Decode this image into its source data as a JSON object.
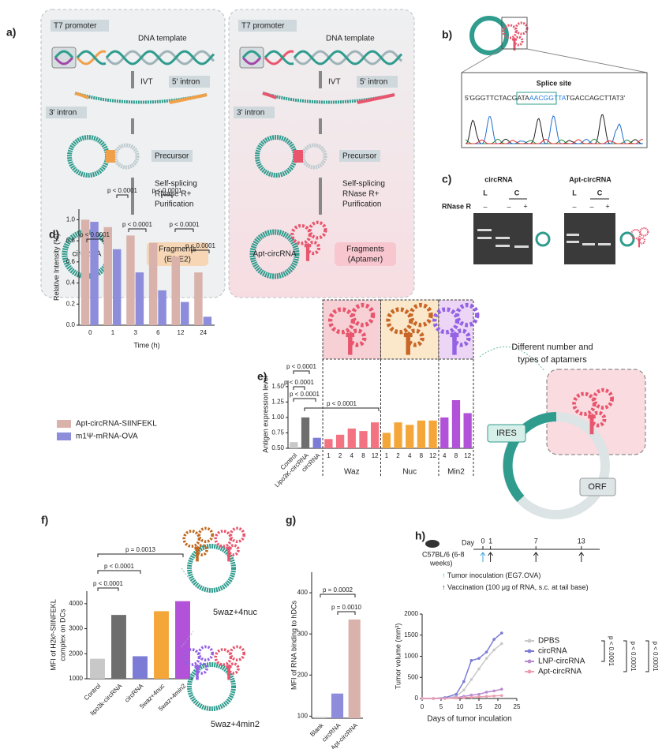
{
  "panel_labels": [
    "a)",
    "b)",
    "c)",
    "d)",
    "e)",
    "f)",
    "g)",
    "h)"
  ],
  "scheme_a": {
    "left": {
      "promoter": "T7 promoter",
      "template": "DNA template",
      "ivt": "IVT",
      "intron5": "5' intron",
      "intron3": "3' intron",
      "precursor": "Precursor",
      "steps": [
        "Self-splicing",
        "RNase R+",
        "Purification"
      ],
      "product": "circRNA",
      "fragments": [
        "Fragments",
        "(E1,E2)"
      ]
    },
    "right": {
      "promoter": "T7 promoter",
      "template": "DNA template",
      "ivt": "IVT",
      "intron5": "5' intron",
      "intron3": "3' intron",
      "precursor": "Precursor",
      "steps": [
        "Self-splicing",
        "RNase R+",
        "Purification"
      ],
      "product": "Apt-circRNA",
      "fragments": [
        "Fragments",
        "(Aptamer)"
      ]
    }
  },
  "panel_b": {
    "title": "Splice site",
    "sequence_prefix": "5'GGGTTCTACGATA",
    "sequence_site": "AACGGTTA",
    "sequence_suffix": "TGACCAGCTTAT3'"
  },
  "panel_c": {
    "rnase_label": "RNase R",
    "gels": [
      {
        "title": "circRNA",
        "lanes": [
          "L",
          "C"
        ],
        "treatment": [
          "–",
          "–",
          "+"
        ]
      },
      {
        "title": "Apt-circRNA",
        "lanes": [
          "L",
          "C"
        ],
        "treatment": [
          "–",
          "–",
          "+"
        ]
      }
    ]
  },
  "scheme_e": {
    "title_lines": [
      "Different number and",
      "types of aptamers"
    ],
    "ires": "IRES",
    "orf": "ORF"
  },
  "scheme_f": {
    "labels": [
      "5waz+4nuc",
      "5waz+4min2"
    ]
  },
  "timeline_h": {
    "day_label": "Day",
    "days": [
      0,
      1,
      7,
      13
    ],
    "mouse": [
      "C57BL/6 (6-8",
      "weeks)"
    ],
    "inoculation": "Tumor inoculation (EG7.OVA)",
    "vaccination": "Vaccination (100 μg of RNA, s.c. at tail base)"
  },
  "chart_data": [
    {
      "type": "bar",
      "ylabel": [
        "Relative Intensity (%)"
      ],
      "xlabel": "Time (h)",
      "categories": [
        "0",
        "1",
        "3",
        "6",
        "12",
        "24"
      ],
      "series": [
        {
          "name": "Apt-circRNA-SIINFEKL",
          "color": "#d9b3ab",
          "values": [
            1.0,
            0.93,
            0.85,
            0.78,
            0.65,
            0.5
          ]
        },
        {
          "name": "m1Ψ-mRNA-OVA",
          "color": "#8d8ddb",
          "values": [
            0.98,
            0.72,
            0.5,
            0.33,
            0.22,
            0.08
          ]
        }
      ],
      "ylim": [
        0,
        1.1
      ],
      "yticks": [
        {
          "value": 0,
          "label": "0.0"
        },
        0.2,
        0.4,
        0.6,
        0.8,
        {
          "value": 1,
          "label": "1.0"
        }
      ],
      "annotations": [
        "p < 0.0001",
        "p < 0.0001",
        "p < 0.0001",
        "p < 0.0001",
        "p < 0.0001",
        "p < 0.0001"
      ]
    },
    {
      "type": "bar",
      "ylabel": [
        "Antigen expression level"
      ],
      "categories": [
        "Control",
        "Lipo3K-circRNA",
        "circRNA",
        "1",
        "2",
        "4",
        "8",
        "12",
        "1",
        "2",
        "4",
        "8",
        "12",
        "4",
        "8",
        "12"
      ],
      "values": [
        0.6,
        1.0,
        0.67,
        0.65,
        0.72,
        0.82,
        0.78,
        0.92,
        0.75,
        0.92,
        0.88,
        0.95,
        0.95,
        1.0,
        1.28,
        1.07
      ],
      "colors": [
        "#c8c8c8",
        "#6e6e6e",
        "#7c7cd6",
        "#f47382",
        "#f47382",
        "#f47382",
        "#f47382",
        "#f47382",
        "#f5a638",
        "#f5a638",
        "#f5a638",
        "#f5a638",
        "#f5a638",
        "#b152d8",
        "#b152d8",
        "#b152d8"
      ],
      "group_labels": [
        "Waz",
        "Nuc",
        "Min2"
      ],
      "ylim": [
        0.5,
        1.6
      ],
      "yticks": [
        {
          "value": 0.5,
          "label": "0.50"
        },
        0.75,
        {
          "value": 1,
          "label": "1.00"
        },
        1.25,
        {
          "value": 1.5,
          "label": "1.50"
        }
      ],
      "annotations": [
        "p < 0.0001",
        "p < 0.0001",
        "p < 0.0001",
        "p < 0.0001"
      ]
    },
    {
      "type": "bar",
      "ylabel": [
        "MFI of H2kᵇ-SIINFEKL",
        "complex on DCs"
      ],
      "categories": [
        "Control",
        "lipo3k-circRNA",
        "circRNA",
        "5waz+4nuc",
        "5waz+4min2"
      ],
      "values": [
        1800,
        3550,
        1900,
        3700,
        4100
      ],
      "colors": [
        "#c8c8c8",
        "#6e6e6e",
        "#7c7cd6",
        "#f5a638",
        "#b152d8"
      ],
      "ylim": [
        1000,
        4500
      ],
      "yticks": [
        1000,
        2000,
        3000,
        4000
      ],
      "annotations": [
        "p < 0.0001",
        "p < 0.0001",
        "p = 0.0013"
      ]
    },
    {
      "type": "bar",
      "ylabel": [
        "MFI of RNA binding to hDCs"
      ],
      "categories": [
        "Blank",
        "circRNA",
        "Apt-circRNA"
      ],
      "values": [
        98,
        155,
        335
      ],
      "colors": [
        "#c8c8c8",
        "#8d8ddb",
        "#d9b3ab"
      ],
      "ylim": [
        95,
        450
      ],
      "yticks": [
        100,
        200,
        300,
        400
      ],
      "annotations": [
        "p = 0.0002",
        "p = 0.0010"
      ]
    },
    {
      "type": "line",
      "ylabel": [
        "Tumor volume (mm³)"
      ],
      "xlabel": "Days of tumor inculation",
      "x": [
        0,
        3,
        6,
        9,
        11,
        13,
        15,
        17,
        19,
        21
      ],
      "series": [
        {
          "name": "DPBS",
          "color": "#c9c9c9",
          "values": [
            0,
            0,
            10,
            50,
            200,
            450,
            700,
            950,
            1150,
            1300
          ]
        },
        {
          "name": "circRNA",
          "color": "#7c7cd6",
          "values": [
            0,
            0,
            20,
            100,
            400,
            900,
            950,
            1100,
            1400,
            1550
          ]
        },
        {
          "name": "LNP-circRNA",
          "color": "#b98bd0",
          "values": [
            0,
            0,
            0,
            20,
            50,
            80,
            100,
            150,
            180,
            220
          ]
        },
        {
          "name": "Apt-circRNA",
          "color": "#ec9fb0",
          "values": [
            0,
            0,
            0,
            10,
            20,
            30,
            40,
            50,
            60,
            70
          ]
        }
      ],
      "xlim": [
        0,
        25
      ],
      "xticks": [
        0,
        5,
        10,
        15,
        20,
        25
      ],
      "ylim": [
        0,
        2000
      ],
      "yticks": [
        0,
        500,
        1000,
        1500,
        2000
      ],
      "annotations": [
        "p < 0.0001",
        "p < 0.0001",
        "p < 0.0001"
      ]
    }
  ]
}
